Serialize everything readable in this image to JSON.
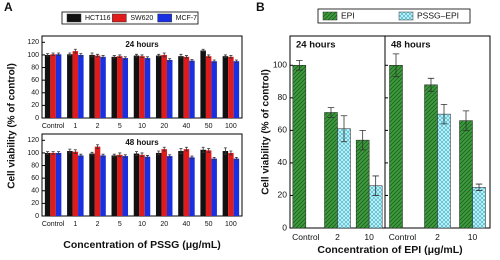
{
  "chart_data": [
    {
      "type": "bar",
      "label": "A",
      "xlabel": "Concentration of PSSG (μg/mL)",
      "ylabel": "Cell viability (% of control)",
      "ylim": [
        0,
        130
      ],
      "yticks": [
        0,
        20,
        40,
        60,
        80,
        100,
        120
      ],
      "categories": [
        "Control",
        "1",
        "2",
        "5",
        "10",
        "20",
        "40",
        "50",
        "100"
      ],
      "series": [
        {
          "name": "HCT116",
          "color": "#111111"
        },
        {
          "name": "SW620",
          "color": "#e01b1b"
        },
        {
          "name": "MCF-7",
          "color": "#1a2fe0"
        }
      ],
      "panels": [
        {
          "title": "24 hours",
          "values": [
            [
              100,
              101,
              100,
              97,
              99,
              99,
              98,
              107,
              98
            ],
            [
              101,
              106,
              99,
              98,
              98,
              100,
              97,
              98,
              97
            ],
            [
              101,
              100,
              97,
              95,
              95,
              92,
              91,
              90,
              90
            ]
          ],
          "errors": [
            [
              2,
              2,
              3,
              2,
              2,
              2,
              3,
              2,
              2
            ],
            [
              2,
              3,
              2,
              2,
              2,
              3,
              2,
              2,
              2
            ],
            [
              2,
              2,
              2,
              2,
              2,
              2,
              2,
              2,
              2
            ]
          ]
        },
        {
          "title": "48 hours",
          "values": [
            [
              100,
              103,
              99,
              96,
              99,
              100,
              103,
              105,
              103
            ],
            [
              100,
              102,
              110,
              97,
              97,
              106,
              106,
              104,
              100
            ],
            [
              100,
              96,
              96,
              95,
              94,
              95,
              93,
              91,
              91
            ]
          ],
          "errors": [
            [
              2,
              3,
              2,
              2,
              3,
              3,
              4,
              4,
              5
            ],
            [
              2,
              3,
              3,
              3,
              3,
              3,
              3,
              3,
              3
            ],
            [
              2,
              2,
              2,
              2,
              2,
              2,
              2,
              2,
              2
            ]
          ]
        }
      ]
    },
    {
      "type": "bar",
      "label": "B",
      "xlabel": "Concentration of EPI (μg/mL)",
      "ylabel": "Cell viability (% of control)",
      "ylim": [
        0,
        118
      ],
      "yticks": [
        0,
        20,
        40,
        60,
        80,
        100
      ],
      "categories": [
        "Control",
        "2",
        "10"
      ],
      "series": [
        {
          "name": "EPI",
          "color": "#3c9b3c",
          "pattern": "hatch"
        },
        {
          "name": "PSSG–EPI",
          "color": "#4fc3d6",
          "pattern": "crosshatch"
        }
      ],
      "panels": [
        {
          "title": "24 hours",
          "values": [
            [
              100,
              71,
              54
            ],
            [
              null,
              61,
              26
            ]
          ],
          "errors": [
            [
              3,
              3,
              6
            ],
            [
              null,
              8,
              6
            ]
          ]
        },
        {
          "title": "48 hours",
          "values": [
            [
              100,
              88,
              66
            ],
            [
              null,
              70,
              25
            ]
          ],
          "errors": [
            [
              7,
              4,
              6
            ],
            [
              null,
              6,
              2
            ]
          ]
        }
      ]
    }
  ]
}
